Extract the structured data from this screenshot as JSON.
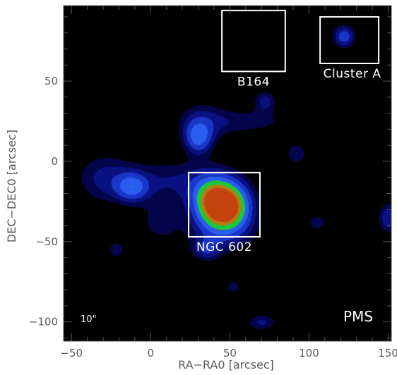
{
  "chart_data": {
    "type": "heatmap",
    "title": "",
    "xlabel": "RA−RA0 [arcsec]",
    "ylabel": "DEC−DEC0 [arcsec]",
    "xlim": [
      -55,
      152
    ],
    "ylim": [
      -112,
      97
    ],
    "x_ticks": [
      -50,
      0,
      50,
      100,
      150
    ],
    "y_ticks": [
      50,
      0,
      -50,
      -100
    ],
    "x_tick_labels": [
      "−50",
      "0",
      "50",
      "100",
      "150"
    ],
    "y_tick_labels": [
      "50",
      "0",
      "−50",
      "−100"
    ],
    "background_color": "#000000",
    "level_colors": [
      "#04044a",
      "#0a1282",
      "#1a36c8",
      "#2a5cf0",
      "#1ac83c",
      "#b87a12",
      "#c4420e"
    ],
    "boxes": [
      {
        "label": "B164",
        "x0": 45,
        "x1": 85,
        "y0": 56,
        "y1": 94
      },
      {
        "label": "Cluster A",
        "x0": 107,
        "x1": 144,
        "y0": 61,
        "y1": 90
      },
      {
        "label": "NGC 602",
        "x0": 24,
        "x1": 69,
        "y0": -47,
        "y1": -7
      }
    ],
    "blobs": [
      {
        "x": 48,
        "y": -28,
        "sx": 10,
        "sy": 10,
        "amp": 1.0
      },
      {
        "x": 38,
        "y": -24,
        "sx": 9,
        "sy": 10,
        "amp": 0.55
      },
      {
        "x": 30,
        "y": 15,
        "sx": 6,
        "sy": 7,
        "amp": 0.45
      },
      {
        "x": -12,
        "y": -16,
        "sx": 7,
        "sy": 6,
        "amp": 0.4
      },
      {
        "x": 122,
        "y": 78,
        "sx": 5,
        "sy": 5,
        "amp": 0.4
      },
      {
        "x": 72,
        "y": 38,
        "sx": 5,
        "sy": 5,
        "amp": 0.25
      },
      {
        "x": 92,
        "y": 5,
        "sx": 5,
        "sy": 5,
        "amp": 0.22
      },
      {
        "x": 150,
        "y": -35,
        "sx": 5,
        "sy": 7,
        "amp": 0.3
      },
      {
        "x": 35,
        "y": -55,
        "sx": 6,
        "sy": 5,
        "amp": 0.25
      },
      {
        "x": -22,
        "y": -55,
        "sx": 4,
        "sy": 4,
        "amp": 0.22
      },
      {
        "x": 70,
        "y": -100,
        "sx": 7,
        "sy": 4,
        "amp": 0.24
      },
      {
        "x": 52,
        "y": -78,
        "sx": 3,
        "sy": 3,
        "amp": 0.22
      },
      {
        "x": 105,
        "y": -38,
        "sx": 5,
        "sy": 4,
        "amp": 0.2
      },
      {
        "x": 15,
        "y": -12,
        "sx": 28,
        "sy": 10,
        "amp": 0.22
      },
      {
        "x": -30,
        "y": -10,
        "sx": 13,
        "sy": 12,
        "amp": 0.2
      },
      {
        "x": 32,
        "y": 25,
        "sx": 12,
        "sy": 10,
        "amp": 0.2
      },
      {
        "x": 62,
        "y": 25,
        "sx": 20,
        "sy": 6,
        "amp": 0.18
      },
      {
        "x": 45,
        "y": -45,
        "sx": 18,
        "sy": 10,
        "amp": 0.2
      },
      {
        "x": 5,
        "y": -38,
        "sx": 10,
        "sy": 10,
        "amp": 0.16
      }
    ],
    "annotations": {
      "scale_bar": "10\"",
      "corner_label": "PMS"
    }
  }
}
